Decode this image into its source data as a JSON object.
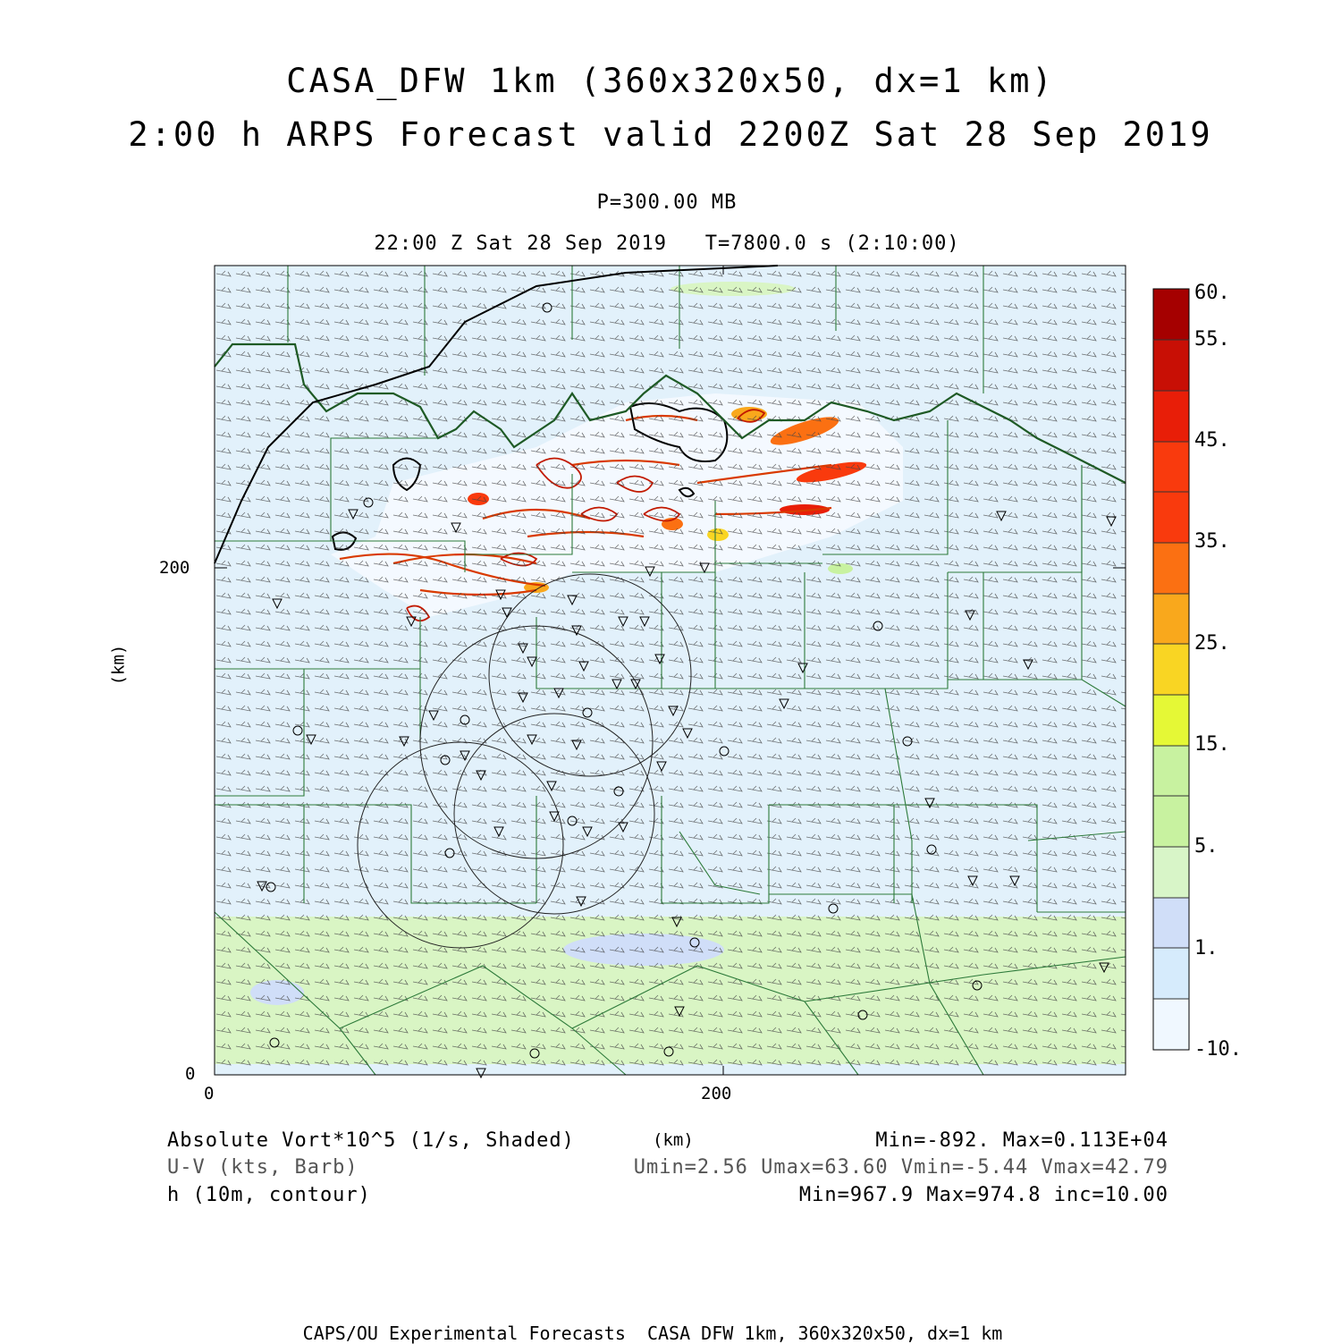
{
  "header": {
    "title_line1": "CASA_DFW 1km (360x320x50, dx=1 km)",
    "title_line2": "2:00 h ARPS Forecast valid 2200Z Sat 28 Sep 2019",
    "level": "P=300.00 MB",
    "time": "22:00 Z Sat 28 Sep 2019   T=7800.0 s (2:10:00)"
  },
  "axes": {
    "x_ticks": [
      "0",
      "200"
    ],
    "y_ticks": [
      "0",
      "200"
    ],
    "x_label": "(km)",
    "y_label": "(km)"
  },
  "colorbar": {
    "labels": [
      "60.",
      "55.",
      "45.",
      "35.",
      "25.",
      "15.",
      "5.",
      "1.",
      "-10."
    ],
    "colors": [
      "#f0f8ff",
      "#d6ebfc",
      "#d0def8",
      "#d8f5c8",
      "#c8f2a0",
      "#e5f836",
      "#f9d523",
      "#f9a81c",
      "#fb7012",
      "#f93a0d",
      "#e81e08",
      "#c80f05",
      "#a50000"
    ]
  },
  "legend": {
    "field1": "Absolute Vort*10^5 (1/s, Shaded)",
    "field2": "U-V (kts, Barb)",
    "field3": "h (10m, contour)",
    "stats1": "Min=-892. Max=0.113E+04",
    "stats2": "Umin=2.56 Umax=63.60 Vmin=-5.44 Vmax=42.79",
    "stats3": "Min=967.9 Max=974.8 inc=10.00"
  },
  "footer": "CAPS/OU Experimental Forecasts  CASA DFW 1km, 360x320x50, dx=1 km"
}
